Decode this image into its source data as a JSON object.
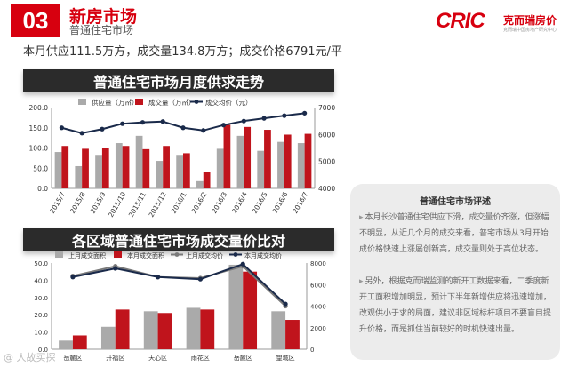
{
  "header": {
    "number": "03",
    "title": "新房市场",
    "subtitle": "普通住宅市场",
    "logo_text": "CRIC",
    "logo_cn": "克而瑞房价",
    "logo_tagline": "克而瑞中国房地产研究中心"
  },
  "summary": "本月供应111.5万方，成交量134.8万方；成交价格6791元/平",
  "sections": {
    "supply_demand_title": "普通住宅市场月度供求走势",
    "district_title": "各区域普通住宅市场成交量价比对"
  },
  "panel": {
    "title": "普通住宅市场评述",
    "para1": "本月长沙普通住宅供应下滑，成交量价齐涨，但涨幅不明显，从近几个月的成交来看，普宅市场从3月开始成价格快速上涨屡创新高，成交量则处于高位状态。",
    "para2": "另外，根据克而瑞监测的新开工数据来看，二季度新开工面积增加明显，预计下半年新增供应将迅速增加，改观供小于求的局面，建议非区域标杆项目不要盲目提升价格，而是抓住当前较好的时机快速出量。"
  },
  "watermark": "@ 人故买探",
  "chart_data": [
    {
      "type": "bar",
      "categories": [
        "2015/7",
        "2015/8",
        "2015/9",
        "2015/10",
        "2015/11",
        "2015/12",
        "2016/1",
        "2016/2",
        "2016/3",
        "2016/4",
        "2016/5",
        "2016/6",
        "2016/7"
      ],
      "series": [
        {
          "name": "供应量（万㎡）",
          "kind": "bar",
          "axis": "left",
          "color": "#aaaaaa",
          "values": [
            90,
            55,
            83,
            112,
            130,
            68,
            83,
            18,
            98,
            130,
            93,
            115,
            112
          ]
        },
        {
          "name": "成交量（万㎡）",
          "kind": "bar",
          "axis": "left",
          "color": "#c0141c",
          "values": [
            105,
            98,
            100,
            105,
            97,
            105,
            87,
            40,
            157,
            152,
            145,
            133,
            135
          ]
        },
        {
          "name": "成交均价（元）",
          "kind": "line",
          "axis": "right",
          "color": "#1a2a4a",
          "values": [
            6250,
            6050,
            6200,
            6400,
            6450,
            6480,
            6250,
            6150,
            6350,
            6500,
            6600,
            6700,
            6791
          ]
        }
      ],
      "ylim": [
        0,
        200
      ],
      "yticks": [
        "0.0",
        "50.0",
        "100.0",
        "150.0",
        "200.0"
      ],
      "y2lim": [
        4000,
        7000
      ],
      "y2ticks": [
        "4000",
        "5000",
        "6000",
        "7000"
      ],
      "legend": "top",
      "grid": false
    },
    {
      "type": "bar",
      "categories": [
        "岳麓区",
        "开福区",
        "天心区",
        "雨花区",
        "岳麓区",
        "望城区"
      ],
      "series": [
        {
          "name": "上月成交面积",
          "kind": "bar",
          "axis": "left",
          "color": "#aaaaaa",
          "values": [
            5,
            13,
            22,
            24,
            49,
            22
          ]
        },
        {
          "name": "本月成交面积",
          "kind": "bar",
          "axis": "left",
          "color": "#c0141c",
          "values": [
            8,
            23,
            21,
            23,
            45,
            17
          ]
        },
        {
          "name": "上月成交均价",
          "kind": "line",
          "axis": "right",
          "color": "#7a7a7a",
          "values": [
            6800,
            7700,
            6700,
            6600,
            7700,
            4000
          ]
        },
        {
          "name": "本月成交均价",
          "kind": "line",
          "axis": "right",
          "color": "#1a2a4a",
          "values": [
            6700,
            7500,
            6700,
            6500,
            7900,
            4200
          ]
        }
      ],
      "ylim": [
        0,
        50
      ],
      "yticks": [
        "0.0",
        "10.0",
        "20.0",
        "30.0",
        "40.0",
        "50.0"
      ],
      "y2lim": [
        0,
        8000
      ],
      "y2ticks": [
        "0",
        "2000",
        "4000",
        "6000",
        "8000"
      ],
      "legend": "top",
      "grid": false
    }
  ]
}
